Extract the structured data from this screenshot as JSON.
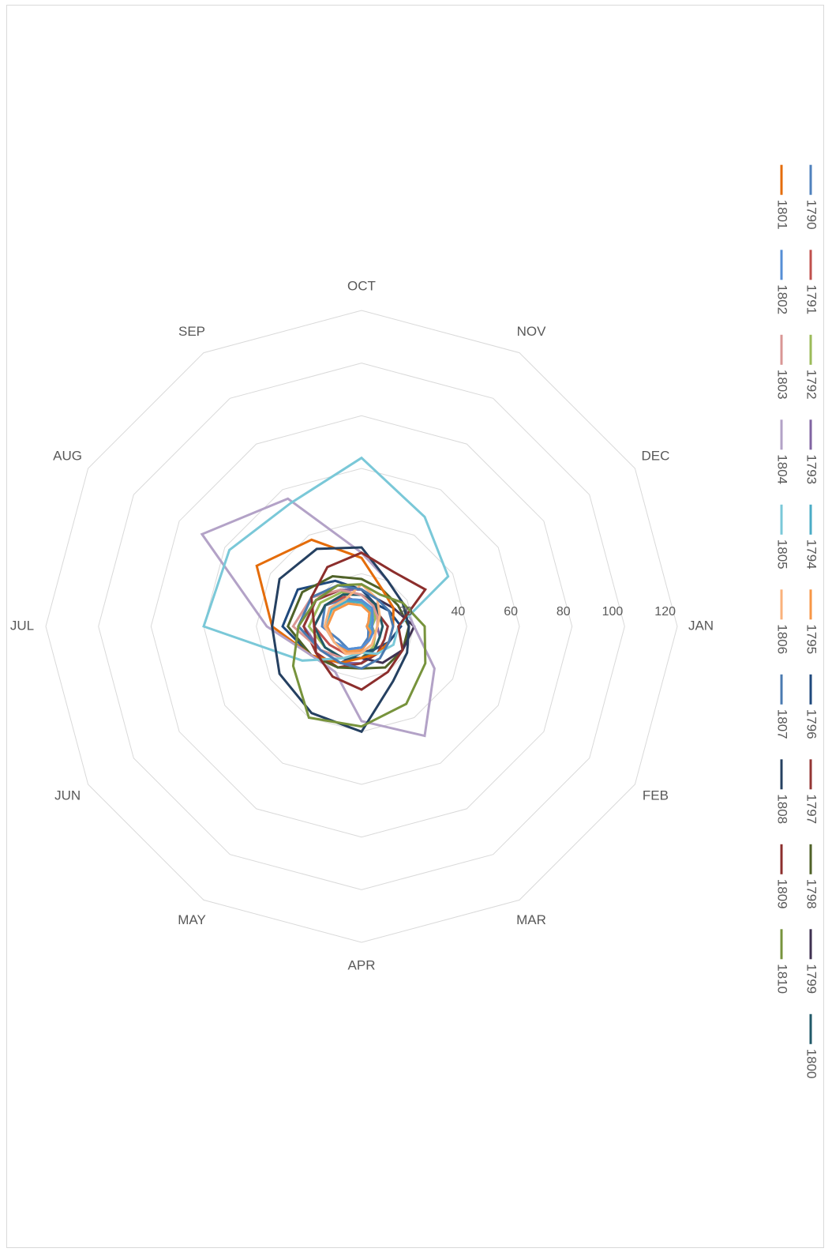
{
  "chart_data": {
    "type": "radar",
    "title": "",
    "categories": [
      "JAN",
      "FEB",
      "MAR",
      "APR",
      "MAY",
      "JUN",
      "JUL",
      "AUG",
      "SEP",
      "OCT",
      "NOV",
      "DEC"
    ],
    "rlim": [
      0,
      120
    ],
    "r_ticks": [
      "20",
      "40",
      "60",
      "80",
      "100",
      "120"
    ],
    "grid": true,
    "legend_position": "bottom",
    "series": [
      {
        "name": "1790",
        "color": "#4f81bd",
        "values": [
          2,
          3,
          5,
          8,
          10,
          10,
          15,
          16,
          12,
          10,
          6,
          3
        ]
      },
      {
        "name": "1791",
        "color": "#c0504d",
        "values": [
          3,
          4,
          6,
          9,
          12,
          14,
          18,
          16,
          13,
          9,
          7,
          4
        ]
      },
      {
        "name": "1792",
        "color": "#9bbb59",
        "values": [
          4,
          6,
          9,
          12,
          14,
          16,
          20,
          18,
          15,
          12,
          9,
          6
        ]
      },
      {
        "name": "1793",
        "color": "#8064a2",
        "values": [
          6,
          8,
          10,
          14,
          16,
          18,
          22,
          20,
          16,
          14,
          10,
          8
        ]
      },
      {
        "name": "1794",
        "color": "#4bacc6",
        "values": [
          3,
          4,
          6,
          8,
          10,
          12,
          14,
          13,
          11,
          9,
          7,
          4
        ]
      },
      {
        "name": "1795",
        "color": "#f79646",
        "values": [
          2,
          4,
          6,
          9,
          11,
          12,
          13,
          12,
          10,
          8,
          6,
          3
        ]
      },
      {
        "name": "1796",
        "color": "#1f497d",
        "values": [
          15,
          12,
          10,
          10,
          16,
          22,
          30,
          28,
          20,
          14,
          10,
          12
        ]
      },
      {
        "name": "1797",
        "color": "#943634",
        "values": [
          10,
          10,
          12,
          14,
          18,
          20,
          22,
          20,
          16,
          12,
          10,
          8
        ]
      },
      {
        "name": "1798",
        "color": "#4f6228",
        "values": [
          18,
          18,
          18,
          16,
          18,
          22,
          28,
          26,
          22,
          18,
          16,
          16
        ]
      },
      {
        "name": "1799",
        "color": "#3f3151",
        "values": [
          20,
          18,
          16,
          12,
          14,
          18,
          24,
          22,
          18,
          14,
          12,
          14
        ]
      },
      {
        "name": "1800",
        "color": "#215968",
        "values": [
          8,
          8,
          10,
          12,
          14,
          16,
          18,
          16,
          14,
          12,
          10,
          8
        ]
      },
      {
        "name": "1801",
        "color": "#e46c0a",
        "values": [
          12,
          12,
          12,
          12,
          16,
          22,
          34,
          46,
          38,
          26,
          16,
          14
        ]
      },
      {
        "name": "1802",
        "color": "#558ed5",
        "values": [
          4,
          5,
          6,
          8,
          10,
          12,
          14,
          14,
          12,
          10,
          8,
          5
        ]
      },
      {
        "name": "1803",
        "color": "#d99694",
        "values": [
          6,
          6,
          8,
          10,
          14,
          18,
          26,
          22,
          16,
          12,
          9,
          7
        ]
      },
      {
        "name": "1804",
        "color": "#b3a2c7",
        "values": [
          20,
          32,
          48,
          36,
          20,
          22,
          36,
          70,
          56,
          28,
          20,
          18
        ]
      },
      {
        "name": "1805",
        "color": "#7ac8d8",
        "values": [
          14,
          14,
          12,
          10,
          14,
          26,
          60,
          58,
          54,
          64,
          48,
          38
        ]
      },
      {
        "name": "1806",
        "color": "#fab27b",
        "values": [
          6,
          6,
          8,
          10,
          12,
          12,
          14,
          14,
          12,
          16,
          12,
          8
        ]
      },
      {
        "name": "1807",
        "color": "#4a7ab0",
        "values": [
          12,
          12,
          14,
          16,
          16,
          18,
          24,
          22,
          18,
          14,
          12,
          12
        ]
      },
      {
        "name": "1808",
        "color": "#254061",
        "values": [
          18,
          20,
          24,
          40,
          38,
          36,
          34,
          36,
          34,
          30,
          20,
          18
        ]
      },
      {
        "name": "1809",
        "color": "#8c2e2c",
        "values": [
          14,
          18,
          20,
          24,
          22,
          20,
          18,
          22,
          26,
          28,
          24,
          28
        ]
      },
      {
        "name": "1810",
        "color": "#77933c",
        "values": [
          24,
          28,
          34,
          38,
          40,
          30,
          24,
          20,
          18,
          16,
          14,
          18
        ]
      }
    ]
  }
}
